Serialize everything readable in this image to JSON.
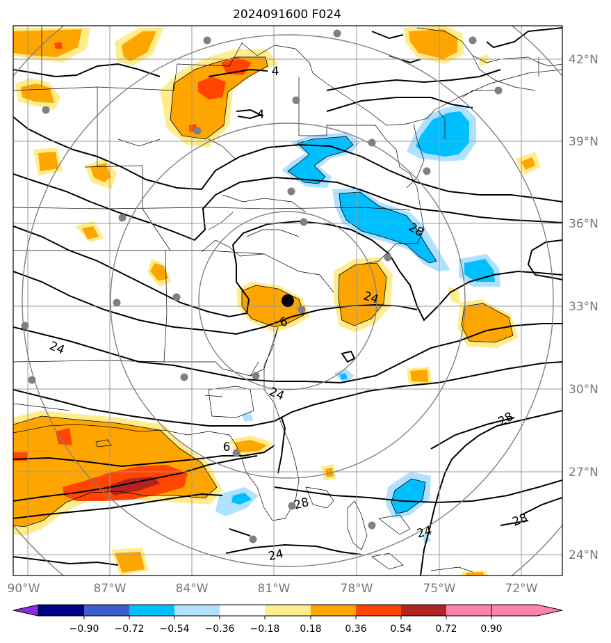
{
  "title": "2024091600 F024",
  "lon_ticks": [
    "90°W",
    "87°W",
    "84°W",
    "81°W",
    "78°W",
    "75°W",
    "72°W"
  ],
  "lat_ticks": [
    "42°N",
    "39°N",
    "36°N",
    "33°N",
    "30°N",
    "27°N",
    "24°N"
  ],
  "colorbar": {
    "labels": [
      "−0.90",
      "−0.72",
      "−0.54",
      "−0.36",
      "−0.18",
      "0.18",
      "0.36",
      "0.54",
      "0.72",
      "0.90"
    ],
    "colors": [
      "#8b2be2",
      "#00008b",
      "#3a5fcd",
      "#00bfff",
      "#b0e2ff",
      "#ffffff",
      "#ffec8b",
      "#ffa500",
      "#ff4500",
      "#b22222",
      "#ff82ab"
    ]
  },
  "contour_labels": [
    "24",
    "24",
    "24",
    "24",
    "24",
    "28",
    "28",
    "28",
    "28",
    "4",
    "4",
    "6",
    "6"
  ],
  "colors": {
    "gridline": "#999999",
    "range_ring": "#808080",
    "center_marker": "#000000",
    "station": "#808080"
  }
}
